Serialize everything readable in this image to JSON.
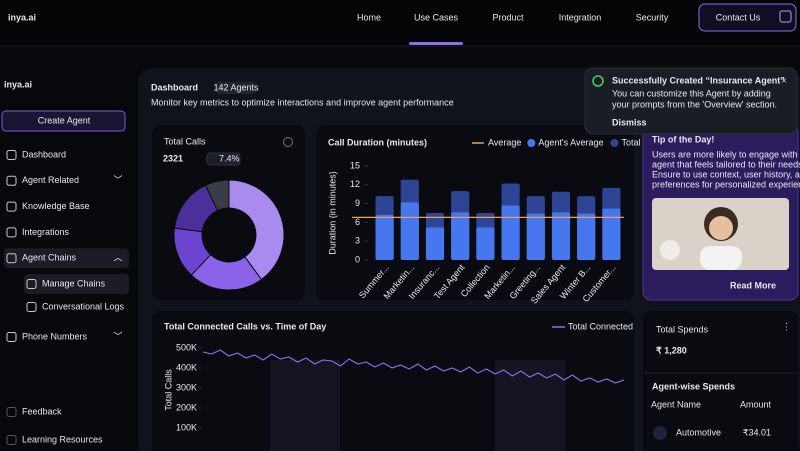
{
  "nav": {
    "logo": "inya.ai",
    "links": [
      "Home",
      "Use Cases",
      "Product",
      "Integration",
      "Security"
    ],
    "active": 1,
    "cta": "Contact Us"
  },
  "sidebar": {
    "logo": "inya.ai",
    "create": "Create Agent",
    "items": [
      {
        "label": "Dashboard"
      },
      {
        "label": "Agent Related",
        "expandable": true
      },
      {
        "label": "Knowledge Base"
      },
      {
        "label": "Integrations"
      },
      {
        "label": "Agent Chains",
        "expandable": true,
        "expanded": true
      }
    ],
    "subitems": [
      {
        "label": "Manage Chains",
        "selected": true
      },
      {
        "label": "Conversational Logs"
      }
    ],
    "after": [
      {
        "label": "Phone Numbers",
        "expandable": true
      }
    ],
    "bottom": [
      "Feedback",
      "Learning Resources"
    ]
  },
  "dashboard": {
    "title": "Dashboard",
    "badge": "142 Agents",
    "subtitle": "Monitor key metrics to optimize interactions and improve agent performance"
  },
  "toast": {
    "title": "Successfully Created “Insurance Agent”",
    "body_lines": [
      "You can customize this Agent by adding",
      "your prompts from the 'Overview' section."
    ],
    "action": "Dismiss"
  },
  "total_calls": {
    "title": "Total Calls",
    "value": "2321",
    "change": "7.4%"
  },
  "tip": {
    "title": "Tip of the Day!",
    "lines": [
      "Users are more likely to engage with an",
      "agent that feels tailored to their needs.",
      "Ensure to use context, user history, and",
      "preferences for personalized experience."
    ],
    "link": "Read More"
  },
  "spends": {
    "title": "Total Spends",
    "value": "₹ 1,280",
    "subtitle": "Agent-wise Spends",
    "columns": [
      "Agent Name",
      "Amount"
    ],
    "rows": [
      [
        "Automotive",
        "₹34.01"
      ]
    ]
  },
  "chart_data": [
    {
      "type": "pie",
      "values": [
        40,
        22,
        15,
        16,
        7
      ],
      "colors": [
        "#a98bf0",
        "#8a63e8",
        "#6d44cf",
        "#4b2f9a",
        "#3a3d48"
      ]
    },
    {
      "type": "bar",
      "title": "Call Duration (minutes)",
      "y_label": "Duration (in minutes)",
      "categories": [
        "Summer...",
        "Marketin...",
        "Insuranc...",
        "Test Agent",
        "Collection",
        "Marketin...",
        "Greeting...",
        "Sales Agent",
        "Winter B...",
        "Customer..."
      ],
      "series": [
        {
          "name": "Agent's Average",
          "color": "#4677ee",
          "values": [
            7.2,
            9.2,
            5.2,
            7.6,
            5.2,
            8.7,
            7.4,
            7.6,
            7.4,
            8.2
          ]
        },
        {
          "name": "Total",
          "color": "#2e4596",
          "values": [
            10.2,
            12.8,
            7.5,
            11,
            7.5,
            12.2,
            10.2,
            10.9,
            10.2,
            11.5
          ]
        }
      ],
      "reference_lines": [
        {
          "name": "Average",
          "color": "#f0a050",
          "value": 6.8
        }
      ],
      "ylim": [
        0,
        15
      ],
      "yticks": [
        0,
        3,
        6,
        9,
        12,
        15
      ],
      "grid": false
    },
    {
      "type": "line",
      "title": "Total Connected Calls vs. Time of Day",
      "y_label": "Total Calls",
      "series": [
        {
          "name": "Total Connected",
          "color": "#8f6ff0",
          "values": [
            480000,
            470000,
            490000,
            460000,
            475000,
            450000,
            465000,
            440000,
            470000,
            445000,
            455000,
            430000,
            450000,
            420000,
            440000,
            435000,
            410000,
            445000,
            420000,
            430000,
            405000,
            425000,
            400000,
            415000,
            395000,
            420000,
            390000,
            410000,
            385000,
            400000,
            380000,
            405000,
            375000,
            395000,
            370000,
            390000,
            360000,
            385000,
            355000,
            375000,
            350000,
            370000,
            340000,
            365000,
            335000,
            350000,
            330000,
            345000,
            325000,
            340000
          ]
        }
      ],
      "ylim": [
        0,
        500000
      ],
      "yticks": [
        {
          "value": 100000,
          "label": "100K"
        },
        {
          "value": 200000,
          "label": "200K"
        },
        {
          "value": 300000,
          "label": "300K"
        },
        {
          "value": 400000,
          "label": "400K"
        },
        {
          "value": 500000,
          "label": "500K"
        }
      ],
      "grid": false
    }
  ]
}
